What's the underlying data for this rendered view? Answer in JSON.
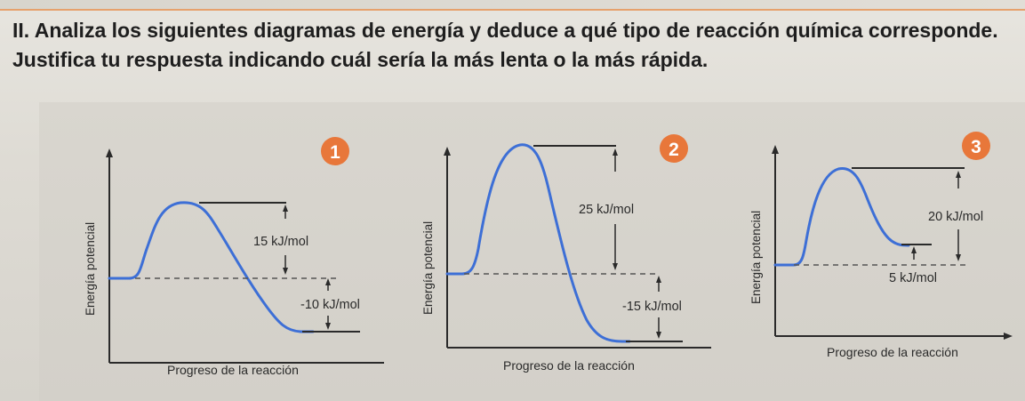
{
  "exercise": {
    "number": "II.",
    "text": "Analiza los siguientes diagramas de energía y deduce a qué tipo de reacción química corresponde. Justifica tu respuesta indicando cuál sería la más lenta o la más rápida."
  },
  "colors": {
    "curve": "#3d6fd6",
    "badge": "#e8773a",
    "axis": "#2a2a2a"
  },
  "diagrams": [
    {
      "badge": "1",
      "y_axis_label": "Energía potencial",
      "x_axis_label": "Progreso de la reacción",
      "activation_label": "15 kJ/mol",
      "delta_label": "-10 kJ/mol"
    },
    {
      "badge": "2",
      "y_axis_label": "Energía potencial",
      "x_axis_label": "Progreso de la reacción",
      "activation_label": "25 kJ/mol",
      "delta_label": "-15 kJ/mol"
    },
    {
      "badge": "3",
      "y_axis_label": "Energía potencial",
      "x_axis_label": "Progreso de la reacción",
      "activation_label": "20 kJ/mol",
      "delta_label": "5 kJ/mol"
    }
  ]
}
